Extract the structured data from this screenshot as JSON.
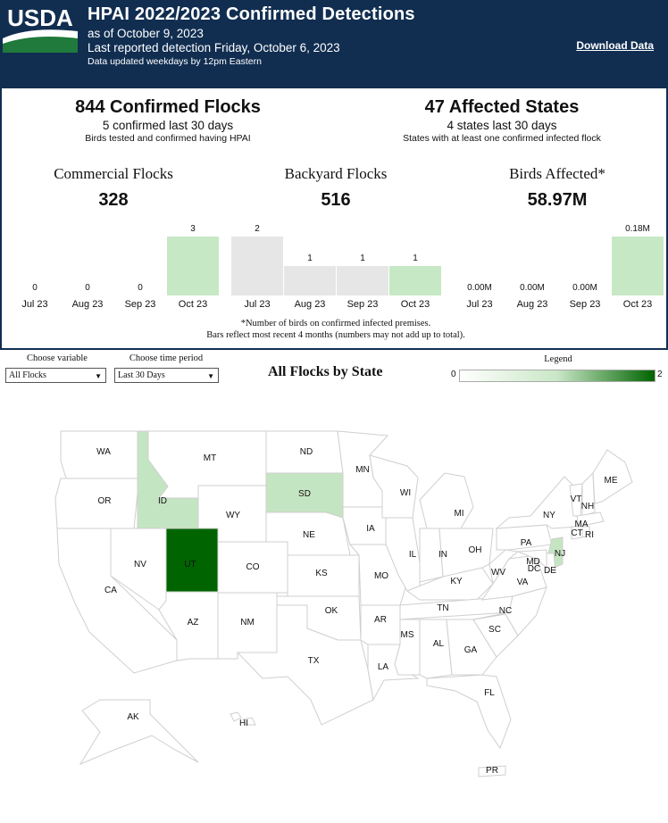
{
  "header": {
    "logo_text": "USDA",
    "title": "HPAI 2022/2023 Confirmed Detections",
    "as_of": "as of October 9, 2023",
    "last_detection": "Last reported detection Friday, October 6, 2023",
    "updated": "Data updated weekdays by 12pm Eastern",
    "download_label": "Download Data",
    "colors": {
      "banner": "#112e51"
    }
  },
  "kpis": {
    "flocks": {
      "big": "844 Confirmed Flocks",
      "sub": "5 confirmed last 30 days",
      "note": "Birds tested and confirmed having HPAI"
    },
    "states": {
      "big": "47 Affected States",
      "sub": "4 states last 30 days",
      "note": "States with at least one confirmed infected flock"
    }
  },
  "categories": [
    {
      "title": "Commercial Flocks",
      "value": "328"
    },
    {
      "title": "Backyard Flocks",
      "value": "516"
    },
    {
      "title": "Birds Affected*",
      "value": "58.97M"
    }
  ],
  "chart_data": [
    {
      "type": "bar",
      "title": "Commercial Flocks",
      "categories": [
        "Jul 23",
        "Aug 23",
        "Sep 23",
        "Oct 23"
      ],
      "values": [
        0,
        0,
        0,
        3
      ],
      "labels": [
        "0",
        "0",
        "0",
        "3"
      ],
      "ylim": [
        0,
        3
      ]
    },
    {
      "type": "bar",
      "title": "Backyard Flocks",
      "categories": [
        "Jul 23",
        "Aug 23",
        "Sep 23",
        "Oct 23"
      ],
      "values": [
        2,
        1,
        1,
        1
      ],
      "labels": [
        "2",
        "1",
        "1",
        "1"
      ],
      "ylim": [
        0,
        2
      ]
    },
    {
      "type": "bar",
      "title": "Birds Affected*",
      "categories": [
        "Jul 23",
        "Aug 23",
        "Sep 23",
        "Oct 23"
      ],
      "values": [
        0.0,
        0.0,
        0.0,
        0.18
      ],
      "labels": [
        "0.00M",
        "0.00M",
        "0.00M",
        "0.18M"
      ],
      "ylim": [
        0,
        0.18
      ]
    }
  ],
  "bar_colors": {
    "current": "#c7e8c4",
    "past": "#e6e6e6"
  },
  "footnote": {
    "line1": "*Number of birds on confirmed infected premises.",
    "line2": "Bars reflect most recent 4 months (numbers may not add up to total)."
  },
  "controls": {
    "variable": {
      "label": "Choose variable",
      "selected": "All Flocks"
    },
    "period": {
      "label": "Choose time period",
      "selected": "Last 30 Days"
    }
  },
  "map": {
    "title": "All Flocks by State",
    "legend": {
      "title": "Legend",
      "min": "0",
      "max": "2",
      "colors": [
        "#ffffff",
        "#c4e5c1",
        "#006400"
      ]
    },
    "states": [
      {
        "abbr": "WA",
        "level": 0
      },
      {
        "abbr": "OR",
        "level": 0
      },
      {
        "abbr": "CA",
        "level": 0
      },
      {
        "abbr": "ID",
        "level": 1
      },
      {
        "abbr": "NV",
        "level": 0
      },
      {
        "abbr": "MT",
        "level": 0
      },
      {
        "abbr": "WY",
        "level": 0
      },
      {
        "abbr": "UT",
        "level": 2
      },
      {
        "abbr": "AZ",
        "level": 0
      },
      {
        "abbr": "CO",
        "level": 0
      },
      {
        "abbr": "NM",
        "level": 0
      },
      {
        "abbr": "ND",
        "level": 0
      },
      {
        "abbr": "SD",
        "level": 1
      },
      {
        "abbr": "NE",
        "level": 0
      },
      {
        "abbr": "KS",
        "level": 0
      },
      {
        "abbr": "OK",
        "level": 0
      },
      {
        "abbr": "TX",
        "level": 0
      },
      {
        "abbr": "MN",
        "level": 0
      },
      {
        "abbr": "IA",
        "level": 0
      },
      {
        "abbr": "MO",
        "level": 0
      },
      {
        "abbr": "AR",
        "level": 0
      },
      {
        "abbr": "LA",
        "level": 0
      },
      {
        "abbr": "WI",
        "level": 0
      },
      {
        "abbr": "IL",
        "level": 0
      },
      {
        "abbr": "MI",
        "level": 0
      },
      {
        "abbr": "IN",
        "level": 0
      },
      {
        "abbr": "OH",
        "level": 0
      },
      {
        "abbr": "KY",
        "level": 0
      },
      {
        "abbr": "TN",
        "level": 0
      },
      {
        "abbr": "MS",
        "level": 0
      },
      {
        "abbr": "AL",
        "level": 0
      },
      {
        "abbr": "GA",
        "level": 0
      },
      {
        "abbr": "FL",
        "level": 0
      },
      {
        "abbr": "SC",
        "level": 0
      },
      {
        "abbr": "NC",
        "level": 0
      },
      {
        "abbr": "VA",
        "level": 0
      },
      {
        "abbr": "WV",
        "level": 0
      },
      {
        "abbr": "PA",
        "level": 0
      },
      {
        "abbr": "NY",
        "level": 0
      },
      {
        "abbr": "VT",
        "level": 0
      },
      {
        "abbr": "NH",
        "level": 0
      },
      {
        "abbr": "ME",
        "level": 0
      },
      {
        "abbr": "MA",
        "level": 0
      },
      {
        "abbr": "CT",
        "level": 0
      },
      {
        "abbr": "RI",
        "level": 0
      },
      {
        "abbr": "NJ",
        "level": 1
      },
      {
        "abbr": "DE",
        "level": 0
      },
      {
        "abbr": "MD",
        "level": 0
      },
      {
        "abbr": "DC",
        "level": 0
      },
      {
        "abbr": "AK",
        "level": 0
      },
      {
        "abbr": "HI",
        "level": 0
      },
      {
        "abbr": "PR",
        "level": 0
      }
    ]
  }
}
